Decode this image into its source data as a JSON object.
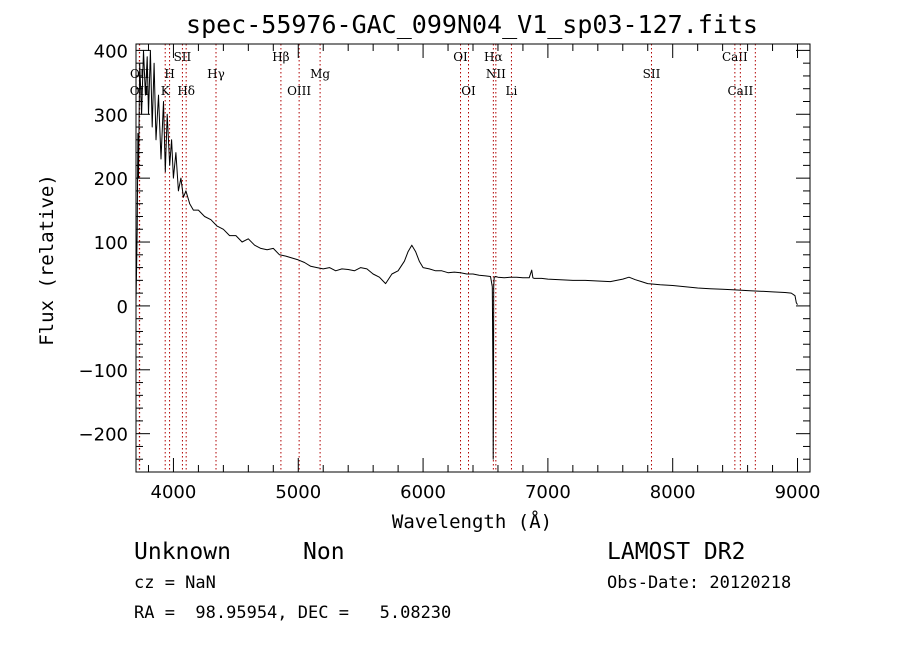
{
  "chart_data": {
    "type": "line",
    "title": "spec-55976-GAC_099N04_V1_sp03-127.fits",
    "xlabel": "Wavelength (Å)",
    "ylabel": "Flux (relative)",
    "xlim": [
      3700,
      9100
    ],
    "ylim": [
      -260,
      410
    ],
    "xticks": [
      4000,
      5000,
      6000,
      7000,
      8000,
      9000
    ],
    "yticks": [
      400,
      300,
      200,
      100,
      0,
      -100,
      -200
    ],
    "ytick_labels": [
      "400",
      "300",
      "200",
      "100",
      "0",
      "−100",
      "−200"
    ],
    "series": [
      {
        "x": [
          3700,
          3705,
          3710,
          3715,
          3720,
          3730,
          3745,
          3760,
          3775,
          3790,
          3800,
          3815,
          3830,
          3845,
          3860,
          3880,
          3900,
          3920,
          3935,
          3950,
          3970,
          3985,
          4000,
          4020,
          4040,
          4060,
          4080,
          4100,
          4130,
          4160,
          4200,
          4250,
          4300,
          4350,
          4400,
          4450,
          4500,
          4550,
          4600,
          4650,
          4700,
          4750,
          4800,
          4850,
          4900,
          4950,
          5000,
          5050,
          5100,
          5150,
          5200,
          5250,
          5300,
          5350,
          5400,
          5450,
          5500,
          5550,
          5600,
          5650,
          5700,
          5750,
          5800,
          5850,
          5880,
          5910,
          5940,
          5970,
          6000,
          6050,
          6100,
          6150,
          6200,
          6250,
          6300,
          6350,
          6400,
          6450,
          6500,
          6540,
          6555,
          6560,
          6562,
          6564,
          6566,
          6570,
          6580,
          6600,
          6650,
          6700,
          6750,
          6800,
          6850,
          6870,
          6880,
          6890,
          6900,
          6950,
          7000,
          7100,
          7200,
          7300,
          7400,
          7500,
          7600,
          7650,
          7700,
          7750,
          7800,
          7900,
          8000,
          8100,
          8200,
          8300,
          8400,
          8500,
          8600,
          8700,
          8800,
          8900,
          8950,
          8980,
          8990,
          9000
        ],
        "y": [
          5,
          60,
          120,
          270,
          200,
          380,
          300,
          400,
          330,
          390,
          300,
          400,
          280,
          380,
          260,
          330,
          230,
          320,
          210,
          300,
          220,
          260,
          200,
          240,
          180,
          200,
          170,
          180,
          160,
          150,
          150,
          140,
          135,
          125,
          120,
          110,
          110,
          100,
          105,
          95,
          90,
          88,
          90,
          80,
          78,
          75,
          72,
          68,
          62,
          60,
          58,
          60,
          55,
          58,
          57,
          55,
          60,
          58,
          50,
          45,
          35,
          50,
          55,
          70,
          85,
          95,
          85,
          70,
          60,
          58,
          55,
          55,
          52,
          53,
          52,
          50,
          50,
          48,
          47,
          46,
          30,
          -120,
          -240,
          -150,
          30,
          45,
          46,
          45,
          44,
          45,
          45,
          44,
          44,
          56,
          44,
          43,
          43,
          43,
          42,
          41,
          40,
          40,
          39,
          38,
          42,
          45,
          41,
          38,
          35,
          33,
          32,
          30,
          28,
          27,
          26,
          25,
          24,
          23,
          22,
          21,
          20,
          16,
          5,
          2
        ]
      }
    ],
    "line_markers": [
      {
        "label": "OII",
        "x": 3727,
        "row": "lower"
      },
      {
        "label": "OII",
        "x": 3729,
        "row": "upper"
      },
      {
        "label": "K",
        "x": 3934,
        "row": "lower"
      },
      {
        "label": "H",
        "x": 3969,
        "row": "upper"
      },
      {
        "label": "SII",
        "x": 4072,
        "row": "top"
      },
      {
        "label": "Hδ",
        "x": 4102,
        "row": "lower"
      },
      {
        "label": "Hγ",
        "x": 4341,
        "row": "upper"
      },
      {
        "label": "Hβ",
        "x": 4861,
        "row": "top"
      },
      {
        "label": "OIII",
        "x": 5007,
        "row": "lower"
      },
      {
        "label": "Mg",
        "x": 5175,
        "row": "upper"
      },
      {
        "label": "OI",
        "x": 6300,
        "row": "top"
      },
      {
        "label": "OI",
        "x": 6364,
        "row": "lower"
      },
      {
        "label": "Hα",
        "x": 6563,
        "row": "top"
      },
      {
        "label": "NII",
        "x": 6583,
        "row": "upper"
      },
      {
        "label": "Li",
        "x": 6708,
        "row": "lower"
      },
      {
        "label": "SII",
        "x": 7830,
        "row": "upper"
      },
      {
        "label": "CaII",
        "x": 8498,
        "row": "top"
      },
      {
        "label": "CaII",
        "x": 8542,
        "row": "lower"
      },
      {
        "label": "",
        "x": 8662,
        "row": "none"
      }
    ],
    "colors": {
      "spectrum": "#000000",
      "markers": "#b00000",
      "axes": "#000000"
    }
  },
  "info": {
    "object_class": "Unknown",
    "subclass": "Non",
    "survey": "LAMOST DR2",
    "cz": "cz = NaN",
    "obs_date": "Obs-Date: 20120218",
    "coords": "RA =  98.95954, DEC =   5.08230"
  }
}
